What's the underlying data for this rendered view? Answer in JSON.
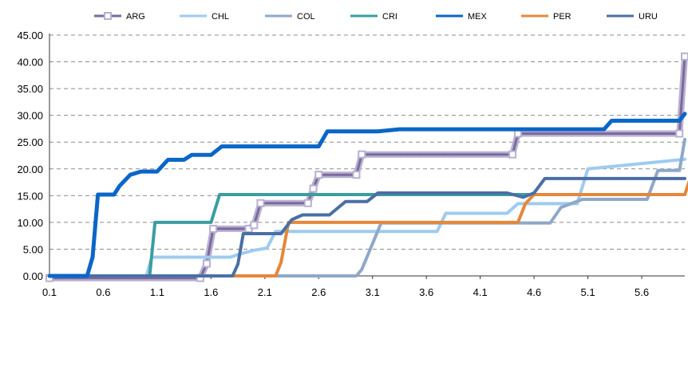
{
  "chart_data": {
    "type": "line",
    "title": "",
    "xlabel": "",
    "ylabel": "",
    "ylim": [
      0,
      45
    ],
    "xlim": [
      0.1,
      6.0
    ],
    "y_ticks": [
      "0.00",
      "5.00",
      "10.00",
      "15.00",
      "20.00",
      "25.00",
      "30.00",
      "35.00",
      "40.00",
      "45.00"
    ],
    "x_ticks": [
      "0.1",
      "0.6",
      "1.1",
      "1.6",
      "2.1",
      "2.6",
      "3.1",
      "3.6",
      "4.1",
      "4.6",
      "5.1",
      "5.6"
    ],
    "grid": true,
    "legend_position": "top",
    "series": [
      {
        "name": "ARG",
        "color": "#7a6a9c",
        "marker": "square",
        "points": [
          [
            0.1,
            -0.4
          ],
          [
            1.5,
            -0.4
          ],
          [
            1.56,
            2.3
          ],
          [
            1.62,
            8.8
          ],
          [
            1.95,
            8.8
          ],
          [
            2.0,
            9.5
          ],
          [
            2.06,
            13.6
          ],
          [
            2.5,
            13.6
          ],
          [
            2.55,
            16.3
          ],
          [
            2.6,
            18.9
          ],
          [
            2.95,
            18.9
          ],
          [
            3.0,
            22.7
          ],
          [
            4.4,
            22.7
          ],
          [
            4.45,
            26.6
          ],
          [
            5.95,
            26.6
          ],
          [
            6.0,
            41.0
          ]
        ]
      },
      {
        "name": "CHL",
        "color": "#9ecbf0",
        "points": [
          [
            0.1,
            0.0
          ],
          [
            1.0,
            0.0
          ],
          [
            1.05,
            3.5
          ],
          [
            1.78,
            3.5
          ],
          [
            1.85,
            4.0
          ],
          [
            2.0,
            4.8
          ],
          [
            2.12,
            5.2
          ],
          [
            2.2,
            8.3
          ],
          [
            3.7,
            8.3
          ],
          [
            3.78,
            11.7
          ],
          [
            4.35,
            11.7
          ],
          [
            4.45,
            13.5
          ],
          [
            5.0,
            13.5
          ],
          [
            5.1,
            20.0
          ],
          [
            6.0,
            21.8
          ]
        ]
      },
      {
        "name": "COL",
        "color": "#8fa8c8",
        "points": [
          [
            0.1,
            0.0
          ],
          [
            2.95,
            0.0
          ],
          [
            3.0,
            1.2
          ],
          [
            3.1,
            6.0
          ],
          [
            3.18,
            9.9
          ],
          [
            4.75,
            9.9
          ],
          [
            4.85,
            12.8
          ],
          [
            5.05,
            14.3
          ],
          [
            5.65,
            14.3
          ],
          [
            5.75,
            19.7
          ],
          [
            5.95,
            19.7
          ],
          [
            6.0,
            25.5
          ]
        ]
      },
      {
        "name": "CRI",
        "color": "#3a9ea0",
        "points": [
          [
            0.1,
            0.0
          ],
          [
            1.03,
            0.0
          ],
          [
            1.08,
            10.0
          ],
          [
            1.6,
            10.0
          ],
          [
            1.68,
            15.2
          ],
          [
            6.0,
            15.2
          ]
        ]
      },
      {
        "name": "MEX",
        "color": "#0a66c8",
        "points": [
          [
            0.1,
            0.0
          ],
          [
            0.45,
            0.0
          ],
          [
            0.5,
            3.5
          ],
          [
            0.55,
            15.2
          ],
          [
            0.7,
            15.2
          ],
          [
            0.75,
            16.8
          ],
          [
            0.85,
            18.9
          ],
          [
            0.95,
            19.5
          ],
          [
            1.1,
            19.5
          ],
          [
            1.2,
            21.7
          ],
          [
            1.35,
            21.7
          ],
          [
            1.42,
            22.6
          ],
          [
            1.6,
            22.6
          ],
          [
            1.7,
            24.2
          ],
          [
            2.6,
            24.2
          ],
          [
            2.68,
            27.0
          ],
          [
            3.15,
            27.0
          ],
          [
            3.35,
            27.4
          ],
          [
            5.25,
            27.4
          ],
          [
            5.32,
            29.0
          ],
          [
            5.95,
            29.0
          ],
          [
            6.0,
            30.3
          ]
        ]
      },
      {
        "name": "PER",
        "color": "#e5873a",
        "points": [
          [
            0.1,
            0.0
          ],
          [
            2.2,
            0.0
          ],
          [
            2.25,
            2.5
          ],
          [
            2.32,
            10.0
          ],
          [
            4.45,
            10.0
          ],
          [
            4.52,
            13.5
          ],
          [
            4.6,
            15.2
          ],
          [
            6.0,
            15.2
          ],
          [
            6.05,
            18.2
          ]
        ]
      },
      {
        "name": "URU",
        "color": "#4a6fa5",
        "points": [
          [
            0.1,
            0.0
          ],
          [
            1.8,
            0.0
          ],
          [
            1.85,
            2.2
          ],
          [
            1.9,
            7.9
          ],
          [
            2.25,
            7.9
          ],
          [
            2.35,
            10.5
          ],
          [
            2.45,
            11.4
          ],
          [
            2.7,
            11.4
          ],
          [
            2.85,
            13.9
          ],
          [
            3.05,
            13.9
          ],
          [
            3.15,
            15.5
          ],
          [
            4.35,
            15.5
          ],
          [
            4.5,
            14.7
          ],
          [
            4.6,
            15.5
          ],
          [
            4.7,
            18.2
          ],
          [
            6.0,
            18.2
          ]
        ]
      }
    ]
  }
}
